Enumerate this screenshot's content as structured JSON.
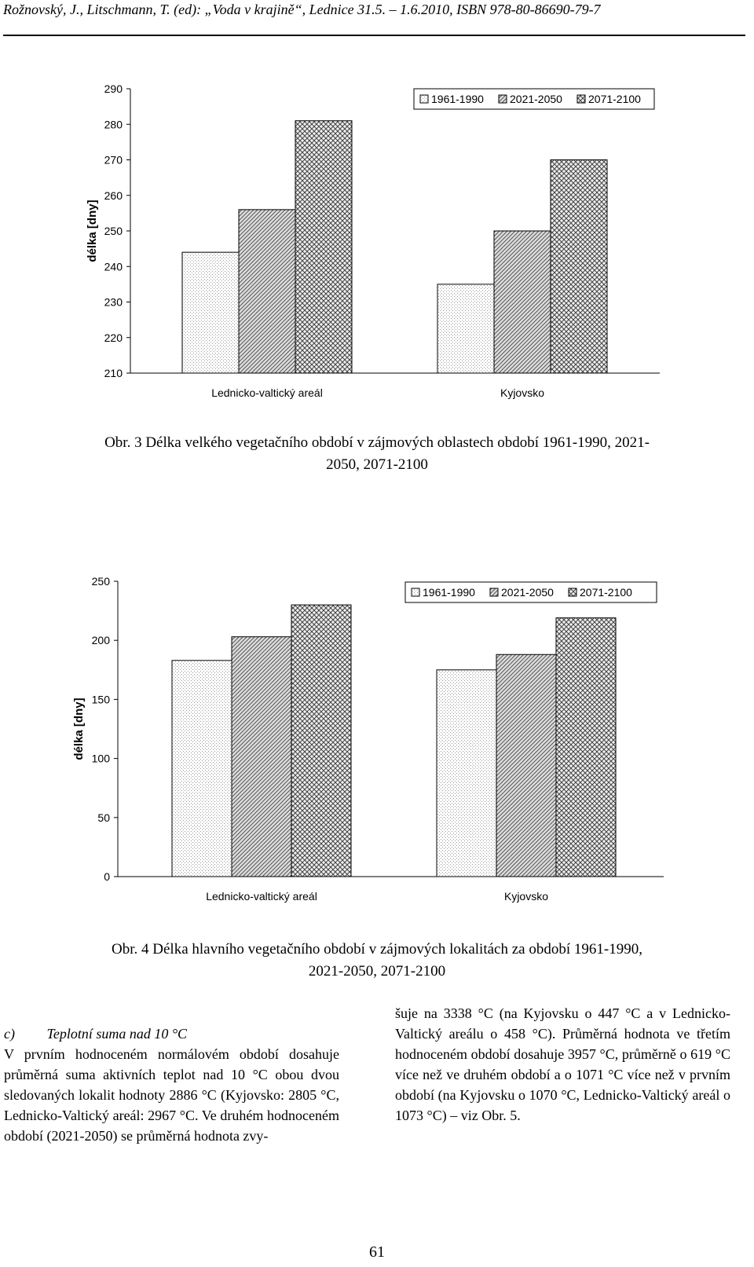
{
  "header": {
    "text": "Rožnovský, J., Litschmann, T. (ed): „Voda v krajině“, Lednice 31.5. – 1.6.2010, ISBN 978-80-86690-79-7"
  },
  "figures": [
    {
      "caption_line1": "Obr. 3 Délka velkého vegetačního období v zájmových oblastech období 1961-1990, 2021-",
      "caption_line2": "2050, 2071-2100"
    },
    {
      "caption_line1": "Obr. 4 Délka hlavního vegetačního období v zájmových lokalitách za období 1961-1990,",
      "caption_line2": "2021-2050, 2071-2100"
    }
  ],
  "chart_data": [
    {
      "type": "bar",
      "categories": [
        "Lednicko-valtický areál",
        "Kyjovsko"
      ],
      "series": [
        {
          "name": "1961-1990",
          "values": [
            244,
            235
          ]
        },
        {
          "name": "2021-2050",
          "values": [
            256,
            250
          ]
        },
        {
          "name": "2071-2100",
          "values": [
            281,
            270
          ]
        }
      ],
      "ylabel": "délka [dny]",
      "ylim": [
        210,
        290
      ],
      "yticks": [
        210,
        220,
        230,
        240,
        250,
        260,
        270,
        280,
        290
      ],
      "legend": "top-right",
      "grid": false
    },
    {
      "type": "bar",
      "categories": [
        "Lednicko-valtický areál",
        "Kyjovsko"
      ],
      "series": [
        {
          "name": "1961-1990",
          "values": [
            183,
            175
          ]
        },
        {
          "name": "2021-2050",
          "values": [
            203,
            188
          ]
        },
        {
          "name": "2071-2100",
          "values": [
            230,
            219
          ]
        }
      ],
      "ylabel": "délka [dny]",
      "ylim": [
        0,
        250
      ],
      "yticks": [
        0,
        50,
        100,
        150,
        200,
        250
      ],
      "legend": "top-right",
      "grid": false
    }
  ],
  "text": {
    "left": {
      "subheading": "c)         Teplotní suma nad 10 °C",
      "paragraph": "V prvním hodnoceném normálovém období dosahuje průměrná suma aktivních teplot nad 10 °C obou dvou sledovaných lokalit hodnoty 2886 °C (Kyjovsko: 2805 °C, Lednicko-Valtický areál: 2967 °C. Ve druhém hodnoceném období (2021-2050) se průměrná hodnota zvy-"
    },
    "right": {
      "paragraph": "šuje na 3338 °C (na Kyjovsku o 447 °C a v Lednicko-Valtický areálu o 458 °C). Průměrná hodnota ve třetím hodnoceném období dosahuje 3957 °C, průměrně o 619 °C více než ve druhém období a o 1071 °C více než v prvním období (na Kyjovsku o 1070 °C, Lednicko-Valtický areál o 1073 °C) – viz Obr. 5."
    }
  },
  "page_number": "61"
}
